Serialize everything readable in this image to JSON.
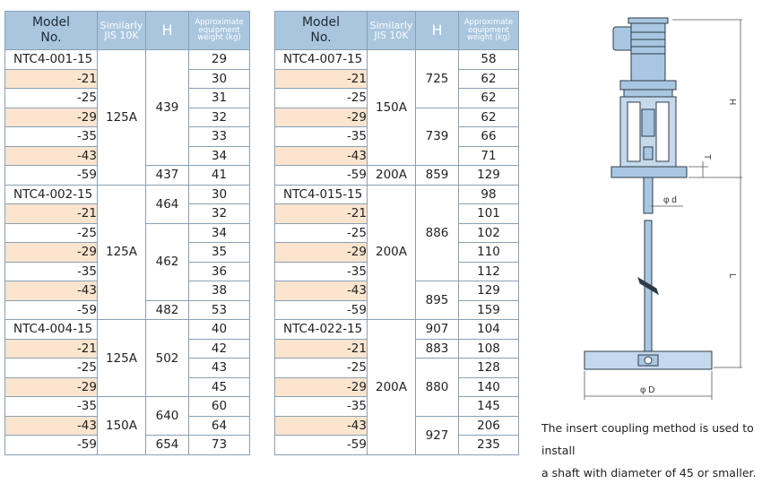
{
  "headers": {
    "model": [
      "Model",
      "No."
    ],
    "jis": [
      "Similarly",
      "JIS 10K"
    ],
    "h": "H",
    "weight": [
      "Approximate",
      "equipment",
      "weight (kg)"
    ]
  },
  "left_table": {
    "models": [
      "NTC4-001-15",
      "-21",
      "-25",
      "-29",
      "-35",
      "-43",
      "-59",
      "NTC4-002-15",
      "-21",
      "-25",
      "-29",
      "-35",
      "-43",
      "-59",
      "NTC4-004-15",
      "-21",
      "-25",
      "-29",
      "-35",
      "-43",
      "-59"
    ],
    "weights": [
      "29",
      "30",
      "31",
      "32",
      "33",
      "34",
      "41",
      "30",
      "32",
      "34",
      "35",
      "36",
      "38",
      "53",
      "40",
      "42",
      "43",
      "45",
      "60",
      "64",
      "73"
    ],
    "jis": [
      "125A",
      "125A",
      "125A",
      "150A"
    ],
    "h": [
      "439",
      "437",
      "464",
      "462",
      "482",
      "502",
      "640",
      "654"
    ]
  },
  "right_table": {
    "models": [
      "NTC4-007-15",
      "-21",
      "-25",
      "-29",
      "-35",
      "-43",
      "-59",
      "NTC4-015-15",
      "-21",
      "-25",
      "-29",
      "-35",
      "-43",
      "-59",
      "NTC4-022-15",
      "-21",
      "-25",
      "-29",
      "-35",
      "-43",
      "-59"
    ],
    "weights": [
      "58",
      "62",
      "62",
      "62",
      "66",
      "71",
      "129",
      "98",
      "101",
      "102",
      "110",
      "112",
      "129",
      "159",
      "104",
      "108",
      "128",
      "140",
      "145",
      "206",
      "235"
    ],
    "jis": [
      "150A",
      "200A",
      "200A",
      "200A"
    ],
    "h": [
      "725",
      "739",
      "859",
      "886",
      "895",
      "907",
      "883",
      "880",
      "927"
    ]
  },
  "diagram": {
    "labels": {
      "h": "H",
      "l": "L",
      "t": "T",
      "d": "φ d",
      "D": "φ D"
    },
    "colors": {
      "body": "#a9c7e2",
      "outline": "#2f3b47"
    }
  },
  "note": [
    "The insert coupling method is used to install",
    "a shaft with diameter of 45 or smaller."
  ]
}
